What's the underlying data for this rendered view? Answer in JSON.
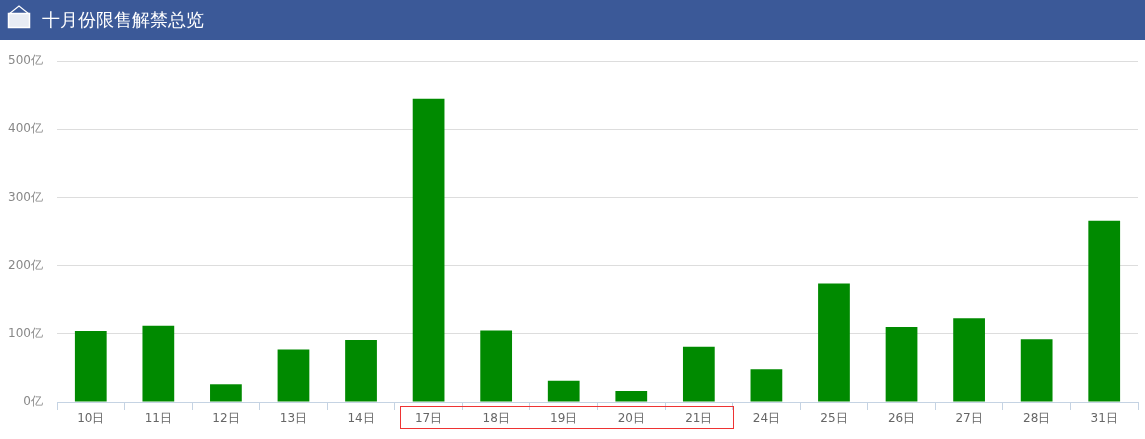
{
  "chart_data": {
    "type": "bar",
    "title": "十月份限售解禁总览",
    "categories": [
      "10日",
      "11日",
      "12日",
      "13日",
      "14日",
      "17日",
      "18日",
      "19日",
      "20日",
      "21日",
      "24日",
      "25日",
      "26日",
      "27日",
      "28日",
      "31日"
    ],
    "values": [
      104,
      112,
      26,
      77,
      91,
      445,
      105,
      31,
      16,
      81,
      48,
      174,
      110,
      123,
      92,
      266
    ],
    "color": "#008a00",
    "ylim": [
      0,
      500
    ],
    "yticks": [
      {
        "value": 0,
        "label": "0亿"
      },
      {
        "value": 100,
        "label": "100亿"
      },
      {
        "value": 200,
        "label": "200亿"
      },
      {
        "value": 300,
        "label": "300亿"
      },
      {
        "value": 400,
        "label": "400亿"
      },
      {
        "value": 500,
        "label": "500亿"
      }
    ],
    "grid": "y"
  }
}
